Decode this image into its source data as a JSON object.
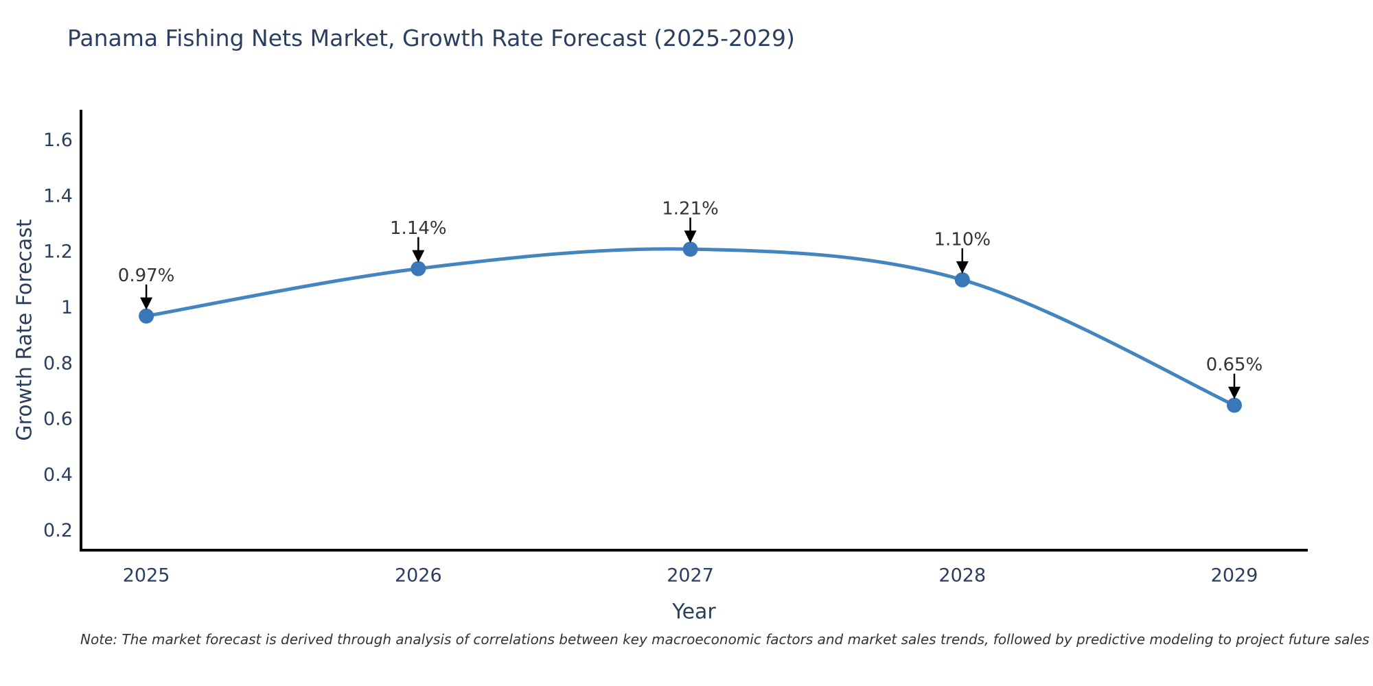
{
  "note": "Note: The market forecast is derived through analysis of correlations between key macroeconomic factors and market sales trends, followed by predictive modeling to project future sales",
  "chart_data": {
    "type": "line",
    "title": "Panama Fishing Nets Market, Growth Rate Forecast (2025-2029)",
    "xlabel": "Year",
    "ylabel": "Growth Rate Forecast",
    "x": [
      2025,
      2026,
      2027,
      2028,
      2029
    ],
    "values": [
      0.97,
      1.14,
      1.21,
      1.1,
      0.65
    ],
    "point_labels": [
      "0.97%",
      "1.14%",
      "1.21%",
      "1.10%",
      "0.65%"
    ],
    "yticks": [
      0.2,
      0.4,
      0.6,
      0.8,
      1,
      1.2,
      1.4,
      1.6
    ],
    "xlim": [
      2024.76,
      2029.27
    ],
    "ylim": [
      0.13,
      1.71
    ],
    "grid": false,
    "legend": "none",
    "line_shape": "spline",
    "colors": {
      "line": "#4285bf",
      "marker": "#3878b8",
      "axis": "#000000",
      "tick_text": "#2a3f5f",
      "annotation_text": "#333333",
      "arrow": "#000000",
      "background": "#ffffff"
    }
  }
}
